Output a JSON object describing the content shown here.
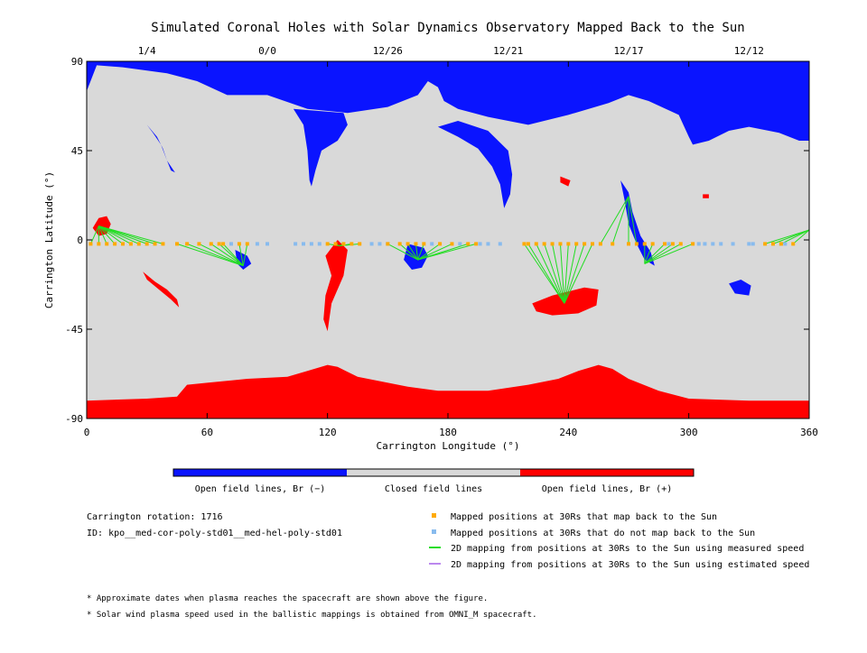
{
  "chart_data": {
    "type": "map",
    "title": "Simulated Coronal Holes with Solar Dynamics Observatory Mapped Back to the Sun",
    "xlabel": "Carrington Longitude (°)",
    "ylabel": "Carrington Latitude (°)",
    "xlim": [
      0,
      360
    ],
    "ylim": [
      -90,
      90
    ],
    "x_ticks": [
      0,
      60,
      120,
      180,
      240,
      300,
      360
    ],
    "y_ticks": [
      90,
      45,
      0,
      -45,
      -90
    ],
    "y_tick_labels": [
      "90",
      "45",
      "0",
      "-45",
      "-90"
    ],
    "top_dates": [
      {
        "label": "1/4",
        "lon": 30
      },
      {
        "label": "0/0",
        "lon": 90
      },
      {
        "label": "12/26",
        "lon": 150
      },
      {
        "label": "12/21",
        "lon": 210
      },
      {
        "label": "12/17",
        "lon": 270
      },
      {
        "label": "12/12",
        "lon": 330
      }
    ],
    "colors": {
      "open_negative": "#0a14ff",
      "closed": "#d9d9d9",
      "open_positive": "#ff0000",
      "mapped": "#ffaa00",
      "not_mapped": "#88bbee",
      "measured": "#22dd22",
      "estimated": "#bb88ee"
    },
    "colorbar": [
      {
        "label": "Open field lines, Br (−)",
        "color": "#0a14ff"
      },
      {
        "label": "Closed field lines",
        "color": "#d9d9d9"
      },
      {
        "label": "Open field lines, Br (+)",
        "color": "#ff0000"
      }
    ],
    "north_hole_boundary": [
      [
        0,
        75
      ],
      [
        5,
        88
      ],
      [
        18,
        87
      ],
      [
        40,
        84
      ],
      [
        55,
        80
      ],
      [
        70,
        73
      ],
      [
        90,
        73
      ],
      [
        110,
        66
      ],
      [
        130,
        64
      ],
      [
        150,
        67
      ],
      [
        165,
        73
      ],
      [
        170,
        80
      ],
      [
        175,
        77
      ],
      [
        178,
        70
      ],
      [
        185,
        66
      ],
      [
        200,
        62
      ],
      [
        220,
        58
      ],
      [
        240,
        63
      ],
      [
        260,
        69
      ],
      [
        270,
        73
      ],
      [
        280,
        70
      ],
      [
        295,
        63
      ],
      [
        300,
        52
      ],
      [
        302,
        48
      ],
      [
        310,
        50
      ],
      [
        320,
        55
      ],
      [
        330,
        57
      ],
      [
        345,
        54
      ],
      [
        355,
        50
      ],
      [
        360,
        50
      ]
    ],
    "south_hole_boundary": [
      [
        0,
        -81
      ],
      [
        30,
        -80
      ],
      [
        45,
        -79
      ],
      [
        50,
        -73
      ],
      [
        60,
        -72
      ],
      [
        80,
        -70
      ],
      [
        100,
        -69
      ],
      [
        110,
        -66
      ],
      [
        120,
        -63
      ],
      [
        125,
        -64
      ],
      [
        135,
        -69
      ],
      [
        160,
        -74
      ],
      [
        175,
        -76
      ],
      [
        200,
        -76
      ],
      [
        220,
        -73
      ],
      [
        235,
        -70
      ],
      [
        245,
        -66
      ],
      [
        255,
        -63
      ],
      [
        262,
        -65
      ],
      [
        270,
        -70
      ],
      [
        285,
        -76
      ],
      [
        300,
        -80
      ],
      [
        330,
        -81
      ],
      [
        360,
        -81
      ]
    ],
    "mapped_lon": [
      2,
      6,
      10,
      14,
      18,
      22,
      26,
      30,
      34,
      38,
      45,
      50,
      56,
      62,
      66,
      68,
      76,
      80,
      120,
      124,
      128,
      132,
      136,
      150,
      156,
      160,
      164,
      168,
      176,
      182,
      190,
      194,
      218,
      220,
      224,
      228,
      232,
      236,
      240,
      244,
      248,
      252,
      256,
      262,
      270,
      274,
      278,
      282,
      288,
      292,
      296,
      302,
      338,
      342,
      346,
      352
    ],
    "not_mapped_lon": [
      72,
      85,
      90,
      104,
      108,
      112,
      116,
      142,
      146,
      150,
      172,
      186,
      196,
      200,
      206,
      290,
      305,
      308,
      312,
      316,
      322,
      330,
      332,
      346,
      348
    ],
    "series": [
      {
        "name": "Mapped positions at 30Rs that map back to the Sun",
        "type": "marker"
      },
      {
        "name": "Mapped positions at 30Rs that do not map back to the Sun",
        "type": "marker"
      },
      {
        "name": "2D mapping from positions at 30Rs to the Sun using measured speed",
        "type": "line"
      },
      {
        "name": "2D mapping from positions at 30Rs to the Sun using estimated speed",
        "type": "line"
      }
    ]
  },
  "info": {
    "rotation": "Carrington rotation: 1716",
    "id": "ID: kpo__med-cor-poly-std01__med-hel-poly-std01"
  },
  "footnotes": [
    "* Approximate dates when plasma reaches the spacecraft are shown above the figure.",
    "* Solar wind plasma speed used in the ballistic mappings is obtained from OMNI_M spacecraft."
  ]
}
